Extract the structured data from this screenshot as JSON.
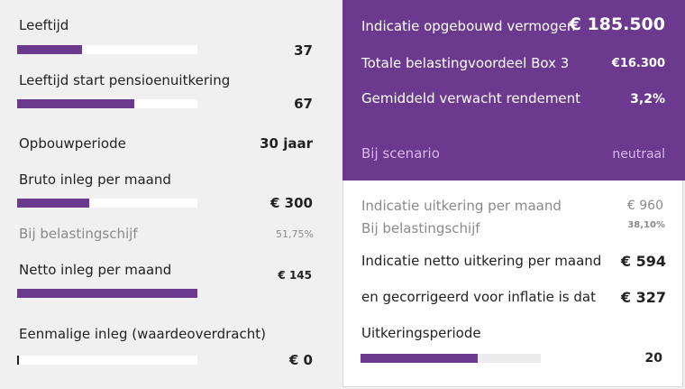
{
  "left": {
    "age": {
      "label": "Leeftijd",
      "value": "37",
      "progress": 0.36
    },
    "start_age": {
      "label": "Leeftijd start pensioenuitkering",
      "value": "67",
      "progress": 0.65
    },
    "build_period": {
      "label": "Opbouwperiode",
      "value": "30 jaar"
    },
    "gross_monthly": {
      "label": "Bruto inleg per maand",
      "value": "€ 300",
      "progress": 0.4
    },
    "tax_bracket": {
      "label": "Bij belastingschijf",
      "value": "51,75%"
    },
    "net_monthly": {
      "label": "Netto inleg per maand",
      "value": "€ 145",
      "progress": 1.0
    },
    "lump_sum": {
      "label": "Eenmalige inleg (waardeoverdracht)",
      "value": "€ 0",
      "progress": 0.0
    }
  },
  "summary": {
    "wealth": {
      "label": "Indicatie opgebouwd vermogen",
      "value": "€ 185.500"
    },
    "tax_benefit": {
      "label": "Totale belastingvoordeel Box 3",
      "value": "€16.300"
    },
    "return": {
      "label": "Gemiddeld verwacht rendement",
      "value": "3,2%"
    },
    "scenario": {
      "label": "Bij scenario",
      "value": "neutraal"
    }
  },
  "payout": {
    "monthly": {
      "label": "Indicatie  uitkering per maand",
      "value": "€ 960"
    },
    "tax_bracket": {
      "label": "Bij belastingschijf",
      "value": "38,10%"
    },
    "net_monthly": {
      "label": "Indicatie netto uitkering per maand",
      "value": "€ 594"
    },
    "inflation": {
      "label": "en gecorrigeerd voor inflatie is dat",
      "value": "€ 327"
    },
    "period": {
      "label": "Uitkeringsperiode",
      "value": "20",
      "progress": 0.65
    }
  },
  "colors": {
    "accent": "#6b3a8e",
    "scenario_text": "#d9b8ef"
  }
}
